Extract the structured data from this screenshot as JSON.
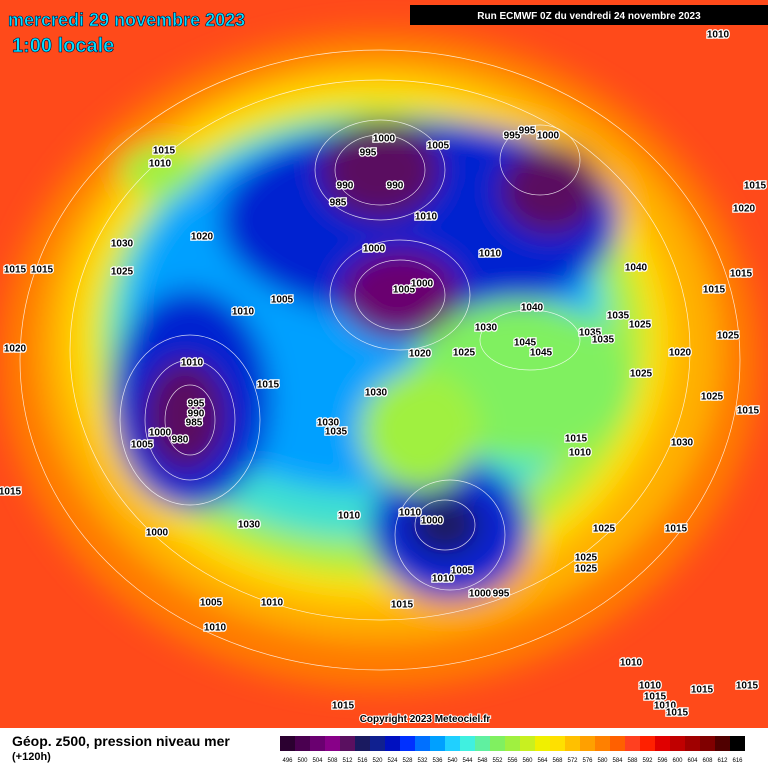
{
  "header": {
    "date": "mercredi 29 novembre 2023",
    "time": "1:00 locale",
    "run": "Run ECMWF 0Z du vendredi 24 novembre 2023"
  },
  "copyright": "Copyright 2023 Meteociel.fr",
  "legend": {
    "title": "Géop. z500, pression niveau mer",
    "subtitle": "(+120h)"
  },
  "colorbar": {
    "ticks": [
      496,
      500,
      504,
      508,
      512,
      516,
      520,
      524,
      528,
      532,
      536,
      540,
      544,
      548,
      552,
      556,
      560,
      564,
      568,
      572,
      576,
      580,
      584,
      588,
      592,
      596,
      600,
      604,
      608,
      612,
      616
    ],
    "colors": [
      "#2b0030",
      "#4a0050",
      "#6a0070",
      "#880088",
      "#5a1060",
      "#1a1a60",
      "#102090",
      "#0010c0",
      "#0030ff",
      "#0070ff",
      "#00a0ff",
      "#20d0ff",
      "#40f0e0",
      "#60f0a0",
      "#80f060",
      "#a0f040",
      "#c8f020",
      "#f0f000",
      "#ffe000",
      "#ffc000",
      "#ffa000",
      "#ff8000",
      "#ff6000",
      "#ff4020",
      "#ff2000",
      "#e00000",
      "#c00000",
      "#a00000",
      "#800000",
      "#500000",
      "#000000"
    ]
  },
  "isobar_labels": [
    "1010",
    "1015",
    "1010",
    "1000",
    "995",
    "1005",
    "995",
    "995",
    "1000",
    "990",
    "990",
    "985",
    "1015",
    "1020",
    "1010",
    "1020",
    "1030",
    "1025",
    "1015",
    "1015",
    "1000",
    "1010",
    "1040",
    "1015",
    "1005",
    "1000",
    "1015",
    "1005",
    "1010",
    "1040",
    "1035",
    "1025",
    "1035",
    "1035",
    "1025",
    "1030",
    "1045",
    "1045",
    "1020",
    "1025",
    "1020",
    "1020",
    "1010",
    "1025",
    "1015",
    "1030",
    "995",
    "990",
    "985",
    "1000",
    "980",
    "1005",
    "1025",
    "1015",
    "1030",
    "1035",
    "1015",
    "1010",
    "1030",
    "1015",
    "1010",
    "1010",
    "1000",
    "1030",
    "1000",
    "1025",
    "1015",
    "1025",
    "1025",
    "1005",
    "1010",
    "1000",
    "995",
    "1015",
    "1005",
    "1010",
    "1010",
    "1010",
    "1010",
    "1015",
    "1015",
    "1015",
    "1010",
    "1015",
    "1015"
  ]
}
